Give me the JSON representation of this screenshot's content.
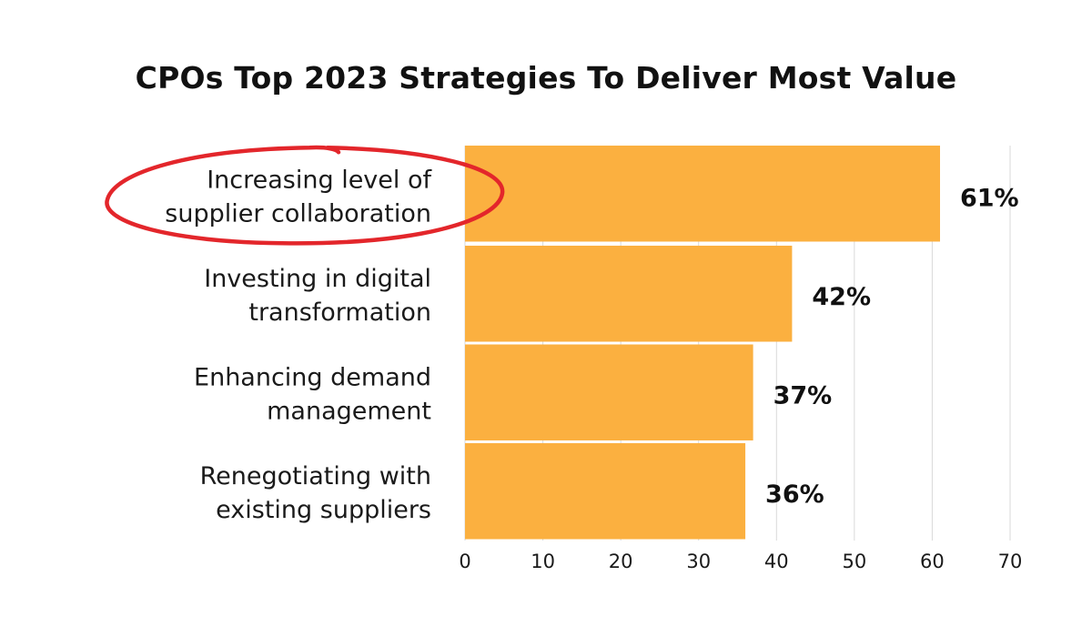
{
  "chart_data": {
    "type": "bar",
    "orientation": "horizontal",
    "title": "CPOs Top 2023 Strategies To Deliver Most Value",
    "categories": [
      [
        "Increasing level of",
        "supplier collaboration"
      ],
      [
        "Investing in digital",
        "transformation"
      ],
      [
        "Enhancing demand",
        "management"
      ],
      [
        "Renegotiating with",
        "existing suppliers"
      ]
    ],
    "values": [
      61,
      42,
      37,
      36
    ],
    "data_labels": [
      "61%",
      "42%",
      "37%",
      "36%"
    ],
    "xlim": [
      0,
      70
    ],
    "xticks": [
      "0",
      "10",
      "20",
      "30",
      "40",
      "50",
      "60",
      "70"
    ],
    "grid": "vertical",
    "highlight_index": 0,
    "colors": {
      "bar": "#FBB040",
      "grid": "#D9D9D9",
      "highlight": "#E3262B"
    }
  }
}
